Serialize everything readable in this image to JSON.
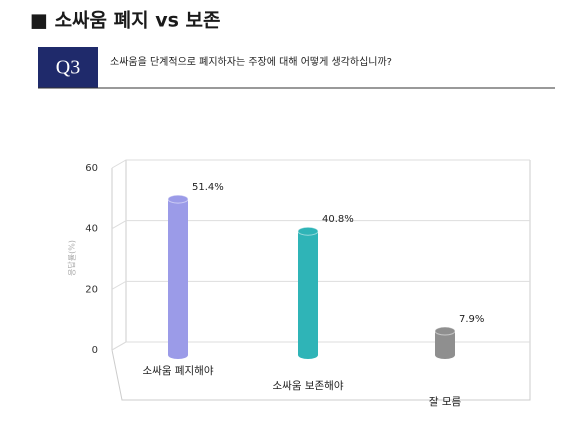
{
  "header": {
    "title": "■ 소싸움 폐지 vs 보존"
  },
  "question": {
    "number": "Q3",
    "text": "소싸움을 단계적으로 폐지하자는 주장에 대해 어떻게 생각하십니까?"
  },
  "chart_data": {
    "type": "bar",
    "ylabel": "응답률(%)",
    "categories": [
      "소싸움 폐지해야",
      "소싸움 보존해야",
      "잘 모름"
    ],
    "values": [
      51.4,
      40.8,
      7.9
    ],
    "value_labels": [
      "51.4%",
      "40.8%",
      "7.9%"
    ],
    "colors": [
      "#9b9be8",
      "#2fb4b7",
      "#8f8f8f"
    ],
    "ylim": [
      0,
      60
    ],
    "yticks": [
      0,
      20,
      40,
      60
    ],
    "grid": true
  }
}
